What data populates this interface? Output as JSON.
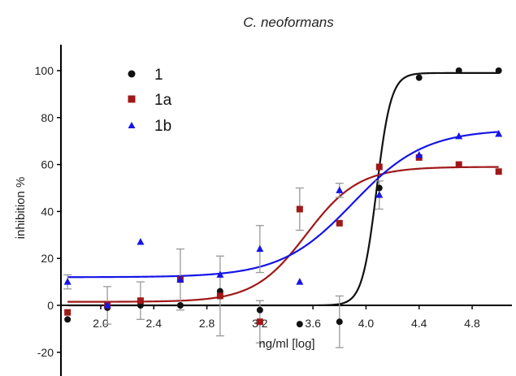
{
  "chart_data": {
    "type": "scatter",
    "title": "C. neoformans",
    "xlabel": "ng/ml [log]",
    "ylabel": "inhibition %",
    "xlim": [
      1.7,
      5.1
    ],
    "ylim": [
      -30,
      110
    ],
    "xticks": [
      2.0,
      2.4,
      2.8,
      3.2,
      3.6,
      4.0,
      4.4,
      4.8
    ],
    "xtick_labels": [
      "2.0",
      "2.4",
      "2.8",
      "3.2",
      "3.6",
      "4.0",
      "4.4",
      "4.8"
    ],
    "yticks": [
      -20,
      0,
      20,
      40,
      60,
      80,
      100
    ],
    "ytick_labels": [
      "-20",
      "0",
      "20",
      "40",
      "60",
      "80",
      "100"
    ],
    "grid": false,
    "legend_position": "top-left",
    "series": [
      {
        "name": "1",
        "color": "#111111",
        "marker": "circle",
        "x": [
          1.75,
          2.05,
          2.3,
          2.6,
          2.9,
          3.2,
          3.5,
          3.8,
          4.1,
          4.4,
          4.7,
          5.0
        ],
        "y": [
          -6,
          -1,
          0,
          0,
          6,
          -2,
          -8,
          -7,
          50,
          97,
          100,
          100
        ],
        "err": [
          0,
          0,
          0,
          0,
          0,
          0,
          0,
          11,
          0,
          0,
          0,
          0
        ],
        "fit": {
          "bottom": 0,
          "top": 99,
          "logEC50": 4.08,
          "hill": 8
        }
      },
      {
        "name": "1a",
        "color": "#a01818",
        "marker": "square",
        "x": [
          1.75,
          2.05,
          2.3,
          2.6,
          2.9,
          3.2,
          3.5,
          3.8,
          4.1,
          4.4,
          4.7,
          5.0
        ],
        "y": [
          -3,
          0,
          2,
          11,
          4,
          -7,
          41,
          35,
          59,
          63,
          60,
          57
        ],
        "err": [
          0,
          8,
          8,
          13,
          17,
          9,
          9,
          0,
          0,
          0,
          0,
          0
        ],
        "fit": {
          "bottom": 1.5,
          "top": 59,
          "logEC50": 3.55,
          "hill": 2.2
        }
      },
      {
        "name": "1b",
        "color": "#1515e8",
        "marker": "triangle",
        "x": [
          1.75,
          2.05,
          2.3,
          2.6,
          2.9,
          3.2,
          3.5,
          3.8,
          4.1,
          4.4,
          4.7,
          5.0
        ],
        "y": [
          10,
          0,
          27,
          11,
          13,
          24,
          10,
          49,
          47,
          64,
          72,
          73
        ],
        "err": [
          3,
          0,
          0,
          0,
          0,
          10,
          0,
          3,
          6,
          0,
          0,
          0
        ],
        "fit": {
          "bottom": 12,
          "top": 75,
          "logEC50": 3.9,
          "hill": 1.6
        }
      }
    ]
  }
}
